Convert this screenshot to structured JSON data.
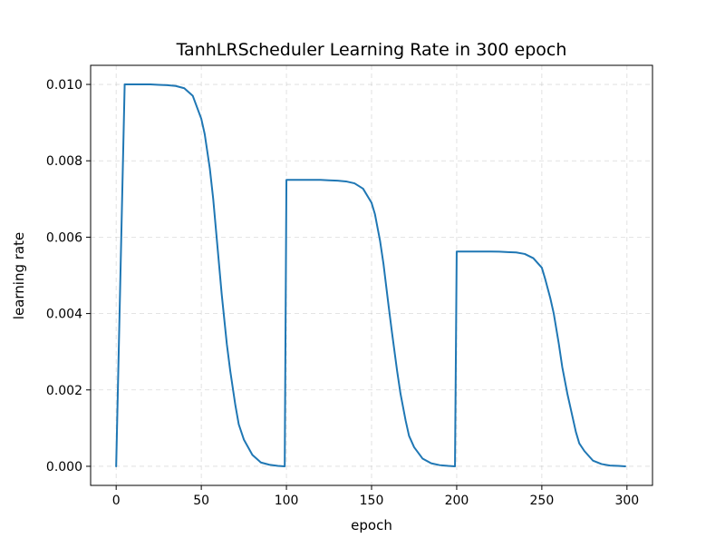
{
  "chart_data": {
    "type": "line",
    "title": "TanhLRScheduler Learning Rate in 300 epoch",
    "xlabel": "epoch",
    "ylabel": "learning rate",
    "xlim": [
      -15,
      315
    ],
    "ylim": [
      -0.0005,
      0.0105
    ],
    "x_ticks": [
      0,
      50,
      100,
      150,
      200,
      250,
      300
    ],
    "x_tick_labels": [
      "0",
      "50",
      "100",
      "150",
      "200",
      "250",
      "300"
    ],
    "y_ticks": [
      0.0,
      0.002,
      0.004,
      0.006,
      0.008,
      0.01
    ],
    "y_tick_labels": [
      "0.000",
      "0.002",
      "0.004",
      "0.006",
      "0.008",
      "0.010"
    ],
    "grid": true,
    "grid_style": "dashed",
    "series": [
      {
        "color": "#1f77b4",
        "x": [
          0,
          5,
          10,
          15,
          20,
          25,
          30,
          35,
          40,
          45,
          50,
          52,
          55,
          57,
          60,
          62,
          65,
          67,
          70,
          72,
          75,
          80,
          85,
          90,
          95,
          99,
          100,
          105,
          110,
          115,
          120,
          125,
          130,
          135,
          140,
          145,
          150,
          152,
          155,
          157,
          160,
          162,
          165,
          167,
          170,
          172,
          175,
          180,
          185,
          190,
          195,
          199,
          200,
          205,
          210,
          215,
          220,
          225,
          230,
          235,
          240,
          245,
          250,
          252,
          255,
          257,
          260,
          262,
          265,
          267,
          270,
          272,
          275,
          280,
          285,
          290,
          295,
          299
        ],
        "y": [
          0.0,
          0.01,
          0.01,
          0.01,
          0.01,
          0.00999,
          0.00998,
          0.00996,
          0.0099,
          0.0097,
          0.0091,
          0.0087,
          0.0078,
          0.007,
          0.0055,
          0.0045,
          0.0032,
          0.0025,
          0.0016,
          0.0011,
          0.0007,
          0.0003,
          0.0001,
          4e-05,
          1e-05,
          0.0,
          0.0075,
          0.0075,
          0.0075,
          0.0075,
          0.0075,
          0.00749,
          0.00748,
          0.00746,
          0.00741,
          0.00727,
          0.0069,
          0.0066,
          0.0059,
          0.0053,
          0.0042,
          0.0035,
          0.0025,
          0.0019,
          0.0012,
          0.0008,
          0.0005,
          0.0002,
          8e-05,
          3e-05,
          1e-05,
          0.0,
          0.005625,
          0.005625,
          0.005625,
          0.005625,
          0.005625,
          0.00562,
          0.00561,
          0.0056,
          0.00556,
          0.00545,
          0.0052,
          0.0049,
          0.0044,
          0.004,
          0.0032,
          0.0026,
          0.0019,
          0.0015,
          0.0009,
          0.0006,
          0.0004,
          0.00015,
          6e-05,
          2e-05,
          1e-05,
          0.0
        ]
      }
    ]
  }
}
